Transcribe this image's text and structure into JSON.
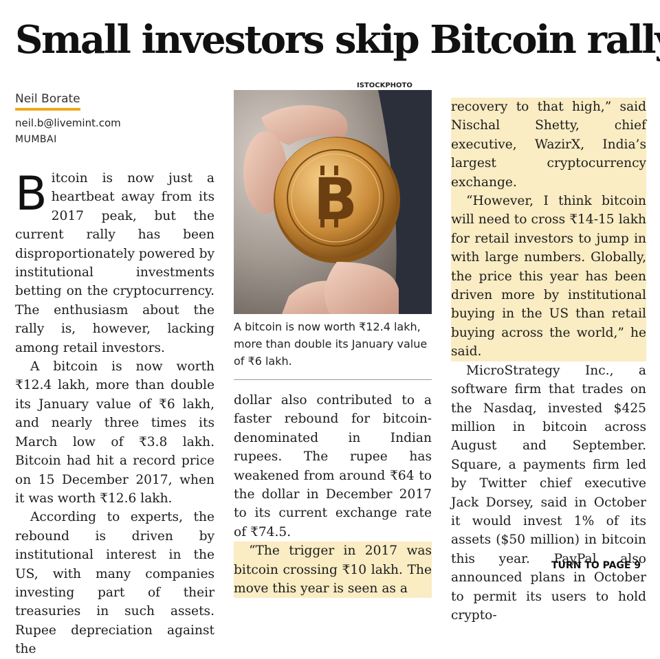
{
  "headline": "Small investors skip Bitcoin rally",
  "byline": {
    "author": "Neil Borate",
    "email": "neil.b@livemint.com",
    "city": "MUMBAI"
  },
  "photo": {
    "credit": "ISTOCKPHOTO",
    "caption": "A bitcoin is now worth ₹12.4 lakh, more than double its January value of ₹6 lakh.",
    "coin_symbol": "bitcoin-coin-icon"
  },
  "article": {
    "dropcap": "B",
    "col1": {
      "p1": "itcoin is now just a heartbeat away from its 2017 peak, but the current rally has been disproportionately powered by institutional investments betting on the cryptocurrency. The enthusiasm about the rally is, however, lacking among retail investors.",
      "p2": "A bitcoin is now worth ₹12.4 lakh, more than double its January value of ₹6 lakh, and nearly three times its March low of ₹3.8 lakh. Bitcoin had hit a record price on 15 December 2017, when it was worth ₹12.6 lakh.",
      "p3": "According to experts, the rebound is driven by institutional interest in the US, with many companies investing part of their treasuries in such assets. Rupee depreciation against the"
    },
    "col2": {
      "p1": "dollar also contributed to a faster rebound for bitcoin-denominated in Indian rupees. The rupee has weakened from around ₹64 to the dollar in December 2017 to its current exchange rate of ₹74.5.",
      "p2": "“The trigger in 2017 was bitcoin crossing ₹10 lakh. The move this year is seen as a"
    },
    "col3": {
      "p1": "recovery to that high,” said Nischal Shetty, chief executive, WazirX, India’s largest cryptocurrency exchange.",
      "p2": "“However, I think bitcoin will need to cross ₹14-15 lakh for retail investors to jump in with large numbers. Globally, the price this year has been driven more by institutional buying in the US than retail buying across the world,” he said.",
      "p3": "MicroStrategy Inc., a software firm that trades on the Nasdaq, invested $425 million in bitcoin across August and September. Square, a payments firm led by Twitter chief executive Jack Dorsey, said in October it would invest 1% of its assets ($50 million) in bitcoin this year. PayPal also announced plans in October to permit its users to hold crypto-"
    }
  },
  "jump": "TURN TO PAGE 9",
  "colors": {
    "highlight": "#faecc3",
    "byline_rule": "#f2a71b",
    "text": "#1c1c1c"
  }
}
